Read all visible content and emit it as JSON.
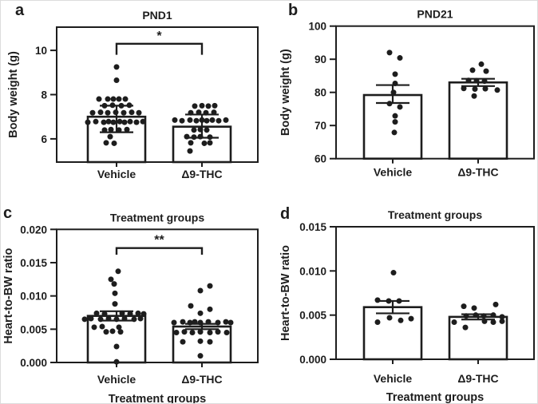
{
  "figure": {
    "background": "#ffffff",
    "ink": "#1d1d1d",
    "bar_fill": "#ffffff"
  },
  "chart_data": [
    {
      "panel_letter": "a",
      "type": "bar",
      "title": "PND1",
      "ylabel": "Body weight (g)",
      "xlabel": "",
      "categories": [
        "Vehicle",
        "Δ9-THC"
      ],
      "ylim": [
        4.95,
        11.05
      ],
      "ytick_values": [
        6,
        8,
        10
      ],
      "ytick_labels": [
        "6",
        "8",
        "10"
      ],
      "grid": false,
      "legend": null,
      "bar_means": [
        7.0,
        6.55
      ],
      "bar_errors": [
        [
          6.3,
          7.5
        ],
        [
          6.05,
          7.1
        ]
      ],
      "significance": {
        "label": "*",
        "bracket_y": 10.3,
        "bracket_drop_y": 9.8
      },
      "points": [
        [
          [
            9.25,
            0
          ],
          [
            8.65,
            0
          ],
          [
            7.8,
            -22
          ],
          [
            7.8,
            -11
          ],
          [
            7.8,
            -4
          ],
          [
            7.8,
            3
          ],
          [
            7.8,
            11
          ],
          [
            7.5,
            -15
          ],
          [
            7.52,
            -5
          ],
          [
            7.5,
            6
          ],
          [
            7.52,
            16
          ],
          [
            7.18,
            -30
          ],
          [
            7.2,
            -20
          ],
          [
            7.18,
            -11
          ],
          [
            7.2,
            -1
          ],
          [
            7.18,
            9
          ],
          [
            7.2,
            19
          ],
          [
            7.18,
            28
          ],
          [
            6.75,
            -36
          ],
          [
            6.78,
            -26
          ],
          [
            6.75,
            -16
          ],
          [
            6.78,
            -10
          ],
          [
            6.75,
            -4
          ],
          [
            6.78,
            4
          ],
          [
            6.75,
            10
          ],
          [
            6.78,
            17
          ],
          [
            6.75,
            25
          ],
          [
            6.78,
            33
          ],
          [
            6.4,
            -15
          ],
          [
            6.42,
            -7
          ],
          [
            6.4,
            3
          ],
          [
            6.42,
            13
          ],
          [
            6.1,
            -8
          ],
          [
            5.82,
            -13
          ],
          [
            5.8,
            -3
          ]
        ],
        [
          [
            7.48,
            -9
          ],
          [
            7.5,
            0
          ],
          [
            7.48,
            8
          ],
          [
            7.5,
            16
          ],
          [
            7.18,
            -14
          ],
          [
            7.2,
            -4
          ],
          [
            7.18,
            5
          ],
          [
            7.2,
            15
          ],
          [
            6.85,
            -34
          ],
          [
            6.82,
            -25
          ],
          [
            6.85,
            -15
          ],
          [
            6.82,
            -7
          ],
          [
            6.85,
            0
          ],
          [
            6.82,
            6
          ],
          [
            6.85,
            13
          ],
          [
            6.82,
            21
          ],
          [
            6.85,
            30
          ],
          [
            6.4,
            -10
          ],
          [
            6.42,
            -2
          ],
          [
            6.4,
            6
          ],
          [
            6.1,
            -19
          ],
          [
            6.08,
            -10
          ],
          [
            6.1,
            -2
          ],
          [
            6.08,
            10
          ],
          [
            5.82,
            -14
          ],
          [
            5.8,
            3
          ],
          [
            5.82,
            10
          ],
          [
            5.45,
            -15
          ]
        ]
      ]
    },
    {
      "panel_letter": "b",
      "type": "bar",
      "title": "PND21",
      "ylabel": "Body weight (g)",
      "xlabel": "",
      "categories": [
        "Vehicle",
        "Δ9-THC"
      ],
      "ylim": [
        60,
        100
      ],
      "ytick_values": [
        60,
        70,
        80,
        90,
        100
      ],
      "ytick_labels": [
        "60",
        "70",
        "80",
        "90",
        "100"
      ],
      "grid": false,
      "legend": null,
      "bar_means": [
        79.2,
        83.0
      ],
      "bar_errors": [
        [
          76.8,
          82.2
        ],
        [
          81.9,
          84.1
        ]
      ],
      "significance": null,
      "points": [
        [
          [
            92,
            -4
          ],
          [
            90.4,
            9
          ],
          [
            85.5,
            3
          ],
          [
            82.7,
            3
          ],
          [
            80,
            1
          ],
          [
            76.6,
            -4
          ],
          [
            75.6,
            9
          ],
          [
            72.9,
            3
          ],
          [
            71.1,
            3
          ],
          [
            67.9,
            2
          ]
        ],
        [
          [
            88.5,
            4
          ],
          [
            86.7,
            -7
          ],
          [
            86.4,
            10
          ],
          [
            83.6,
            -12
          ],
          [
            83.5,
            -2
          ],
          [
            83.4,
            8
          ],
          [
            81.2,
            -18
          ],
          [
            81,
            -4
          ],
          [
            81.1,
            9
          ],
          [
            80.7,
            24
          ],
          [
            78.9,
            -5
          ]
        ]
      ]
    },
    {
      "panel_letter": "c",
      "type": "bar",
      "title": "Treatment groups",
      "ylabel": "Heart-to-BW ratio",
      "xlabel": "Treatment groups",
      "categories": [
        "Vehicle",
        "Δ9-THC"
      ],
      "ylim": [
        0,
        0.02
      ],
      "ytick_values": [
        0,
        0.005,
        0.01,
        0.015,
        0.02
      ],
      "ytick_labels": [
        "0.000",
        "0.005",
        "0.010",
        "0.015",
        "0.020"
      ],
      "grid": false,
      "legend": null,
      "bar_means": [
        0.007,
        0.0054
      ],
      "bar_errors": [
        [
          0.0063,
          0.0077
        ],
        [
          0.005,
          0.0058
        ]
      ],
      "significance": {
        "label": "**",
        "bracket_y": 0.0172,
        "bracket_drop_y": 0.0162
      },
      "points": [
        [
          [
            0.0137,
            2
          ],
          [
            0.0125,
            -7
          ],
          [
            0.0118,
            -3
          ],
          [
            0.0104,
            -2
          ],
          [
            0.0088,
            -2
          ],
          [
            0.0074,
            -25
          ],
          [
            0.0073,
            -15
          ],
          [
            0.0074,
            7
          ],
          [
            0.0073,
            17
          ],
          [
            0.0074,
            27
          ],
          [
            0.0073,
            34
          ],
          [
            0.0065,
            -40
          ],
          [
            0.0066,
            -32
          ],
          [
            0.0065,
            -20
          ],
          [
            0.0066,
            -10
          ],
          [
            0.0065,
            0
          ],
          [
            0.0066,
            10
          ],
          [
            0.0065,
            22
          ],
          [
            0.0066,
            30
          ],
          [
            0.0053,
            -28
          ],
          [
            0.0054,
            -18
          ],
          [
            0.0053,
            3
          ],
          [
            0.0046,
            -13
          ],
          [
            0.0047,
            -5
          ],
          [
            0.0046,
            5
          ],
          [
            0.0024,
            0
          ],
          [
            0.0001,
            0
          ]
        ],
        [
          [
            0.0115,
            10
          ],
          [
            0.0108,
            -2
          ],
          [
            0.0085,
            -14
          ],
          [
            0.008,
            10
          ],
          [
            0.0074,
            -2
          ],
          [
            0.006,
            -35
          ],
          [
            0.0061,
            -24
          ],
          [
            0.006,
            -15
          ],
          [
            0.0061,
            -9
          ],
          [
            0.006,
            -2
          ],
          [
            0.0061,
            8
          ],
          [
            0.006,
            20
          ],
          [
            0.0061,
            30
          ],
          [
            0.006,
            36
          ],
          [
            0.0045,
            -32
          ],
          [
            0.0046,
            -22
          ],
          [
            0.0045,
            -12
          ],
          [
            0.0046,
            -2
          ],
          [
            0.0045,
            10
          ],
          [
            0.0046,
            20
          ],
          [
            0.0045,
            31
          ],
          [
            0.0031,
            -24
          ],
          [
            0.0032,
            -2
          ],
          [
            0.0031,
            10
          ],
          [
            0.001,
            -2
          ]
        ]
      ]
    },
    {
      "panel_letter": "d",
      "type": "bar",
      "title": "Treatment groups",
      "ylabel": "Heart-to-BW ratio",
      "xlabel": "Treatment groups",
      "categories": [
        "Vehicle",
        "Δ9-THC"
      ],
      "ylim": [
        0,
        0.015
      ],
      "ytick_values": [
        0,
        0.005,
        0.01,
        0.015
      ],
      "ytick_labels": [
        "0.000",
        "0.005",
        "0.010",
        "0.015"
      ],
      "grid": false,
      "legend": null,
      "bar_means": [
        0.0059,
        0.0048
      ],
      "bar_errors": [
        [
          0.0052,
          0.0066
        ],
        [
          0.0045,
          0.0051
        ]
      ],
      "significance": null,
      "points": [
        [
          [
            0.0098,
            1
          ],
          [
            0.0067,
            -19
          ],
          [
            0.0066,
            -5
          ],
          [
            0.0066,
            8
          ],
          [
            0.0042,
            -19
          ],
          [
            0.0047,
            -4
          ],
          [
            0.0044,
            10
          ],
          [
            0.0046,
            23
          ]
        ],
        [
          [
            0.006,
            -18
          ],
          [
            0.0058,
            -5
          ],
          [
            0.0062,
            22
          ],
          [
            0.0049,
            -15
          ],
          [
            0.005,
            -3
          ],
          [
            0.0049,
            7
          ],
          [
            0.005,
            19
          ],
          [
            0.0048,
            30
          ],
          [
            0.0042,
            -30
          ],
          [
            0.0043,
            8
          ],
          [
            0.0042,
            19
          ],
          [
            0.0043,
            30
          ],
          [
            0.0036,
            -16
          ]
        ]
      ]
    }
  ]
}
